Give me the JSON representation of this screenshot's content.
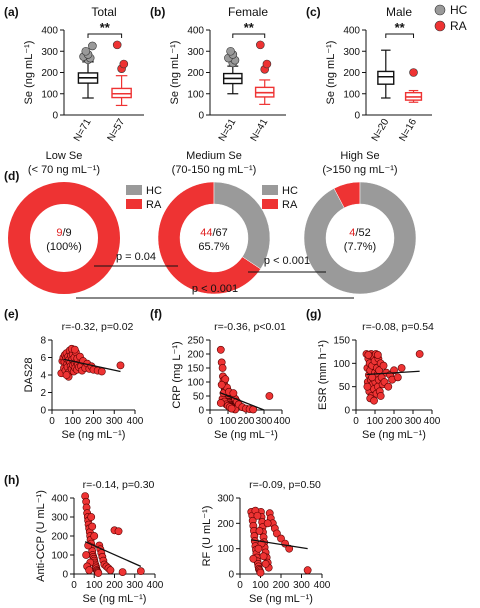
{
  "colors": {
    "HC": "#9a9a9a",
    "RA": "#ee3333",
    "RA_text": "#e02020",
    "axis": "#111111"
  },
  "legend": [
    {
      "key": "HC",
      "label": "HC",
      "color": "#9a9a9a"
    },
    {
      "key": "RA",
      "label": "RA",
      "color": "#ee3333"
    }
  ],
  "chart_data": [
    {
      "type": "box",
      "label": "(a)",
      "title": "Total",
      "ylabel": "Se (ng mL⁻¹)",
      "ylim": [
        0,
        400
      ],
      "yticks": [
        0,
        100,
        200,
        300,
        400
      ],
      "significance": "**",
      "groups": [
        {
          "name": "HC",
          "n_label": "N=71",
          "min": 80,
          "q1": 150,
          "median": 175,
          "q3": 198,
          "max": 250,
          "outliers": [
            260,
            268,
            275,
            285,
            300,
            325
          ]
        },
        {
          "name": "RA",
          "n_label": "N=57",
          "min": 45,
          "q1": 82,
          "median": 100,
          "q3": 125,
          "max": 185,
          "outliers": [
            218,
            240,
            330
          ]
        }
      ]
    },
    {
      "type": "box",
      "label": "(b)",
      "title": "Female",
      "ylabel": "Se (ng mL⁻¹)",
      "ylim": [
        0,
        400
      ],
      "yticks": [
        0,
        100,
        200,
        300,
        400
      ],
      "significance": "**",
      "groups": [
        {
          "name": "HC",
          "n_label": "N=51",
          "min": 100,
          "q1": 148,
          "median": 172,
          "q3": 195,
          "max": 230,
          "outliers": [
            245,
            258,
            268,
            285,
            300
          ]
        },
        {
          "name": "RA",
          "n_label": "N=41",
          "min": 50,
          "q1": 85,
          "median": 105,
          "q3": 130,
          "max": 165,
          "outliers": [
            215,
            240,
            330
          ]
        }
      ]
    },
    {
      "type": "box",
      "label": "(c)",
      "title": "Male",
      "ylabel": "Se (ng mL⁻¹)",
      "ylim": [
        0,
        400
      ],
      "yticks": [
        0,
        100,
        200,
        300,
        400
      ],
      "significance": "**",
      "groups": [
        {
          "name": "HC",
          "n_label": "N=20",
          "min": 80,
          "q1": 145,
          "median": 180,
          "q3": 205,
          "max": 305,
          "outliers": []
        },
        {
          "name": "RA",
          "n_label": "N=16",
          "min": 60,
          "q1": 70,
          "median": 85,
          "q3": 105,
          "max": 115,
          "outliers": [
            200
          ]
        }
      ]
    },
    {
      "type": "pie",
      "label": "(d)",
      "donuts": [
        {
          "title_line1": "Low Se",
          "title_line2": "(< 70 ng mL⁻¹)",
          "ra": 9,
          "total": 9,
          "ra_label": "9",
          "rest_label": "/9",
          "percent_label": "(100%)"
        },
        {
          "title_line1": "Medium Se",
          "title_line2": "(70-150 ng mL⁻¹)",
          "ra": 44,
          "total": 67,
          "ra_label": "44",
          "rest_label": "/67",
          "percent_label": "65.7%"
        },
        {
          "title_line1": "High Se",
          "title_line2": "(>150 ng mL⁻¹)",
          "ra": 4,
          "total": 52,
          "ra_label": "4",
          "rest_label": "/52",
          "percent_label": "(7.7%)"
        }
      ],
      "comparisons": [
        {
          "between": [
            "Low Se",
            "Medium Se"
          ],
          "p_label": "p = 0.04"
        },
        {
          "between": [
            "Medium Se",
            "High Se"
          ],
          "p_label": "p < 0.001"
        },
        {
          "between": [
            "Low Se",
            "High Se"
          ],
          "p_label": "p < 0.001"
        }
      ]
    },
    {
      "type": "scatter",
      "label": "(e)",
      "ylabel": "DAS28",
      "xlabel": "Se (ng mL⁻¹)",
      "stat_label": "r=-0.32, p=0.02",
      "xlim": [
        0,
        400
      ],
      "xticks": [
        0,
        100,
        200,
        300,
        400
      ],
      "xtick_labels": [
        "0",
        "100",
        "200",
        "300",
        "400"
      ],
      "ylim": [
        0,
        8
      ],
      "yticks": [
        0,
        2,
        4,
        6,
        8
      ],
      "fit": [
        [
          55,
          5.8
        ],
        [
          330,
          4.4
        ]
      ],
      "points": [
        [
          45,
          4.2
        ],
        [
          50,
          5.6
        ],
        [
          55,
          6.0
        ],
        [
          58,
          4.8
        ],
        [
          60,
          5.5
        ],
        [
          62,
          6.3
        ],
        [
          65,
          4.5
        ],
        [
          68,
          5.9
        ],
        [
          70,
          6.5
        ],
        [
          72,
          5.2
        ],
        [
          75,
          4.9
        ],
        [
          78,
          6.1
        ],
        [
          80,
          5.7
        ],
        [
          82,
          4.3
        ],
        [
          85,
          6.8
        ],
        [
          88,
          5.4
        ],
        [
          90,
          5.0
        ],
        [
          92,
          6.2
        ],
        [
          95,
          4.7
        ],
        [
          98,
          5.8
        ],
        [
          100,
          6.4
        ],
        [
          102,
          5.1
        ],
        [
          105,
          4.4
        ],
        [
          108,
          6.0
        ],
        [
          110,
          5.3
        ],
        [
          112,
          4.8
        ],
        [
          115,
          6.6
        ],
        [
          118,
          5.5
        ],
        [
          120,
          4.6
        ],
        [
          122,
          5.9
        ],
        [
          125,
          5.2
        ],
        [
          130,
          4.9
        ],
        [
          135,
          6.1
        ],
        [
          140,
          5.0
        ],
        [
          145,
          4.5
        ],
        [
          150,
          5.6
        ],
        [
          160,
          4.8
        ],
        [
          170,
          5.3
        ],
        [
          180,
          4.7
        ],
        [
          190,
          5.0
        ],
        [
          200,
          4.6
        ],
        [
          220,
          4.5
        ],
        [
          240,
          4.4
        ],
        [
          330,
          5.1
        ],
        [
          80,
          3.8
        ],
        [
          95,
          7.0
        ],
        [
          70,
          4.0
        ],
        [
          110,
          6.9
        ]
      ]
    },
    {
      "type": "scatter",
      "label": "(f)",
      "ylabel": "CRP (mg L⁻¹)",
      "xlabel": "Se (ng mL⁻¹)",
      "stat_label": "r=-0.36, p<0.01",
      "xlim": [
        0,
        400
      ],
      "xticks": [
        0,
        100,
        200,
        300,
        400
      ],
      "xtick_labels": [
        "0",
        "100",
        "200",
        "300",
        "400"
      ],
      "ylim": [
        0,
        250
      ],
      "yticks": [
        0,
        50,
        100,
        150,
        200,
        250
      ],
      "fit": [
        [
          55,
          62
        ],
        [
          300,
          0
        ]
      ],
      "points": [
        [
          60,
          215
        ],
        [
          65,
          170
        ],
        [
          70,
          150
        ],
        [
          72,
          120
        ],
        [
          75,
          105
        ],
        [
          78,
          95
        ],
        [
          80,
          85
        ],
        [
          82,
          75
        ],
        [
          85,
          70
        ],
        [
          88,
          60
        ],
        [
          90,
          55
        ],
        [
          92,
          50
        ],
        [
          95,
          45
        ],
        [
          98,
          40
        ],
        [
          100,
          35
        ],
        [
          102,
          30
        ],
        [
          105,
          28
        ],
        [
          108,
          25
        ],
        [
          110,
          20
        ],
        [
          112,
          18
        ],
        [
          115,
          15
        ],
        [
          118,
          12
        ],
        [
          120,
          10
        ],
        [
          125,
          8
        ],
        [
          130,
          5
        ],
        [
          135,
          3
        ],
        [
          140,
          2
        ],
        [
          70,
          40
        ],
        [
          80,
          30
        ],
        [
          90,
          20
        ],
        [
          100,
          15
        ],
        [
          110,
          10
        ],
        [
          120,
          5
        ],
        [
          60,
          25
        ],
        [
          75,
          60
        ],
        [
          85,
          110
        ],
        [
          95,
          80
        ],
        [
          105,
          65
        ],
        [
          140,
          40
        ],
        [
          150,
          30
        ],
        [
          160,
          20
        ],
        [
          180,
          10
        ],
        [
          200,
          5
        ],
        [
          220,
          3
        ],
        [
          240,
          2
        ],
        [
          330,
          50
        ],
        [
          65,
          90
        ],
        [
          130,
          60
        ]
      ]
    },
    {
      "type": "scatter",
      "label": "(g)",
      "ylabel": "ESR (mm h⁻¹)",
      "xlabel": "Se (ng mL⁻¹)",
      "stat_label": "r=-0.08, p=0.54",
      "xlim": [
        0,
        400
      ],
      "xticks": [
        0,
        100,
        200,
        300,
        400
      ],
      "xtick_labels": [
        "0",
        "100",
        "200",
        "300",
        "400"
      ],
      "ylim": [
        0,
        150
      ],
      "yticks": [
        0,
        50,
        100,
        150
      ],
      "fit": [
        [
          55,
          76
        ],
        [
          335,
          83
        ]
      ],
      "points": [
        [
          55,
          120
        ],
        [
          60,
          90
        ],
        [
          62,
          60
        ],
        [
          65,
          110
        ],
        [
          68,
          75
        ],
        [
          70,
          40
        ],
        [
          72,
          100
        ],
        [
          75,
          85
        ],
        [
          78,
          65
        ],
        [
          80,
          120
        ],
        [
          82,
          30
        ],
        [
          85,
          95
        ],
        [
          88,
          55
        ],
        [
          90,
          115
        ],
        [
          92,
          70
        ],
        [
          95,
          45
        ],
        [
          98,
          105
        ],
        [
          100,
          80
        ],
        [
          102,
          60
        ],
        [
          105,
          120
        ],
        [
          108,
          35
        ],
        [
          110,
          90
        ],
        [
          112,
          75
        ],
        [
          115,
          50
        ],
        [
          118,
          110
        ],
        [
          120,
          65
        ],
        [
          122,
          85
        ],
        [
          125,
          40
        ],
        [
          130,
          100
        ],
        [
          135,
          70
        ],
        [
          140,
          55
        ],
        [
          145,
          95
        ],
        [
          150,
          60
        ],
        [
          160,
          80
        ],
        [
          170,
          50
        ],
        [
          180,
          75
        ],
        [
          190,
          65
        ],
        [
          200,
          85
        ],
        [
          220,
          70
        ],
        [
          240,
          90
        ],
        [
          335,
          120
        ],
        [
          75,
          25
        ],
        [
          95,
          20
        ],
        [
          65,
          118
        ],
        [
          115,
          118
        ],
        [
          85,
          70
        ],
        [
          130,
          30
        ],
        [
          60,
          50
        ]
      ]
    },
    {
      "type": "scatter",
      "label": "(h)",
      "ylabel": "Anti-CCP (U mL⁻¹)",
      "xlabel": "Se (ng mL⁻¹)",
      "stat_label": "r=-0.14, p=0.30",
      "xlim": [
        0,
        400
      ],
      "xticks": [
        0,
        100,
        200,
        300,
        400
      ],
      "xtick_labels": [
        "0",
        "100",
        "200",
        "300",
        "400"
      ],
      "ylim": [
        0,
        400
      ],
      "yticks": [
        0,
        100,
        200,
        300,
        400
      ],
      "fit": [
        [
          55,
          170
        ],
        [
          330,
          40
        ]
      ],
      "points": [
        [
          55,
          410
        ],
        [
          60,
          380
        ],
        [
          62,
          350
        ],
        [
          65,
          320
        ],
        [
          68,
          300
        ],
        [
          70,
          280
        ],
        [
          72,
          260
        ],
        [
          75,
          240
        ],
        [
          78,
          220
        ],
        [
          80,
          200
        ],
        [
          82,
          180
        ],
        [
          85,
          160
        ],
        [
          88,
          140
        ],
        [
          90,
          120
        ],
        [
          92,
          100
        ],
        [
          95,
          90
        ],
        [
          98,
          80
        ],
        [
          100,
          70
        ],
        [
          102,
          60
        ],
        [
          105,
          50
        ],
        [
          108,
          40
        ],
        [
          110,
          30
        ],
        [
          112,
          20
        ],
        [
          115,
          15
        ],
        [
          118,
          10
        ],
        [
          120,
          5
        ],
        [
          125,
          150
        ],
        [
          130,
          130
        ],
        [
          135,
          110
        ],
        [
          140,
          90
        ],
        [
          145,
          70
        ],
        [
          150,
          50
        ],
        [
          160,
          40
        ],
        [
          170,
          30
        ],
        [
          180,
          20
        ],
        [
          200,
          230
        ],
        [
          220,
          225
        ],
        [
          240,
          10
        ],
        [
          330,
          15
        ],
        [
          60,
          100
        ],
        [
          70,
          150
        ],
        [
          80,
          60
        ],
        [
          90,
          250
        ],
        [
          100,
          200
        ],
        [
          65,
          40
        ],
        [
          75,
          20
        ],
        [
          85,
          300
        ]
      ]
    },
    {
      "type": "scatter",
      "label": "",
      "ylabel": "RF (U mL⁻¹)",
      "xlabel": "Se (ng mL⁻¹)",
      "stat_label": "r=-0.09, p=0.50",
      "xlim": [
        0,
        400
      ],
      "xticks": [
        0,
        100,
        200,
        300,
        400
      ],
      "xtick_labels": [
        "0",
        "100",
        "200",
        "300",
        "400"
      ],
      "ylim": [
        0,
        300
      ],
      "yticks": [
        0,
        100,
        200,
        300
      ],
      "fit": [
        [
          55,
          135
        ],
        [
          330,
          100
        ]
      ],
      "points": [
        [
          55,
          245
        ],
        [
          60,
          230
        ],
        [
          62,
          210
        ],
        [
          65,
          190
        ],
        [
          68,
          170
        ],
        [
          70,
          150
        ],
        [
          72,
          130
        ],
        [
          75,
          110
        ],
        [
          78,
          95
        ],
        [
          80,
          80
        ],
        [
          82,
          65
        ],
        [
          85,
          50
        ],
        [
          88,
          40
        ],
        [
          90,
          30
        ],
        [
          92,
          20
        ],
        [
          95,
          15
        ],
        [
          98,
          10
        ],
        [
          100,
          5
        ],
        [
          102,
          245
        ],
        [
          105,
          225
        ],
        [
          108,
          205
        ],
        [
          110,
          185
        ],
        [
          112,
          165
        ],
        [
          115,
          145
        ],
        [
          118,
          125
        ],
        [
          120,
          105
        ],
        [
          125,
          85
        ],
        [
          130,
          65
        ],
        [
          135,
          45
        ],
        [
          140,
          25
        ],
        [
          145,
          240
        ],
        [
          150,
          220
        ],
        [
          160,
          200
        ],
        [
          170,
          180
        ],
        [
          180,
          160
        ],
        [
          200,
          140
        ],
        [
          220,
          120
        ],
        [
          240,
          100
        ],
        [
          330,
          15
        ],
        [
          65,
          60
        ],
        [
          75,
          250
        ],
        [
          85,
          230
        ],
        [
          95,
          170
        ],
        [
          105,
          120
        ],
        [
          115,
          70
        ],
        [
          125,
          40
        ],
        [
          135,
          200
        ],
        [
          90,
          100
        ]
      ]
    }
  ]
}
